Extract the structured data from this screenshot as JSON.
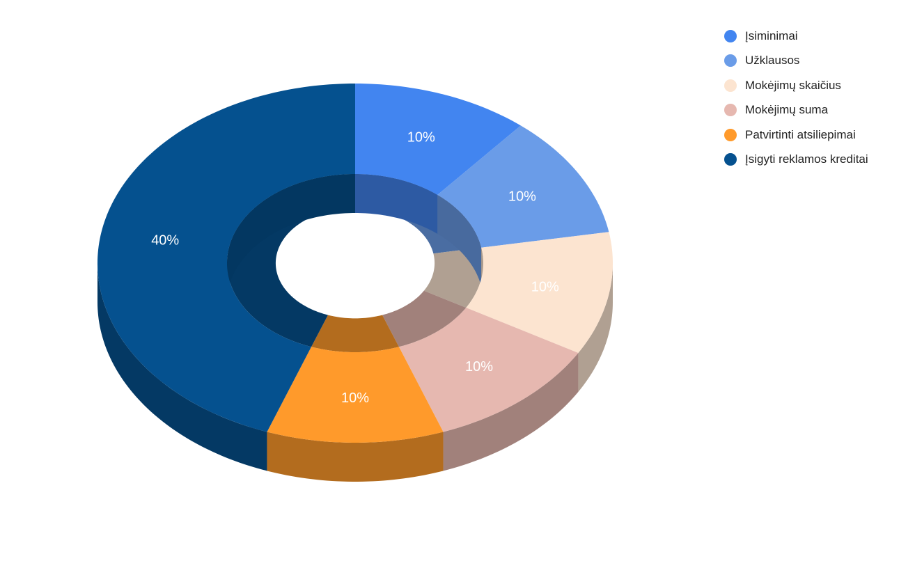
{
  "chart_data": {
    "type": "pie",
    "style": "3d-donut",
    "title": "",
    "legend_position": "top-right",
    "slices": [
      {
        "name": "Įsiminimai",
        "value": 10,
        "label": "10%",
        "color": "#4285f0"
      },
      {
        "name": "Užklausos",
        "value": 10,
        "label": "10%",
        "color": "#6a9ce8"
      },
      {
        "name": "Mokėjimų skaičius",
        "value": 10,
        "label": "10%",
        "color": "#fce4d0"
      },
      {
        "name": "Mokėjimų suma",
        "value": 10,
        "label": "10%",
        "color": "#e6b8b0"
      },
      {
        "name": "Patvirtinti atsiliepimai",
        "value": 10,
        "label": "10%",
        "color": "#ff9a2b"
      },
      {
        "name": "Įsigyti reklamos kreditai",
        "value": 40,
        "label": "40%",
        "color": "#05518f"
      }
    ]
  }
}
